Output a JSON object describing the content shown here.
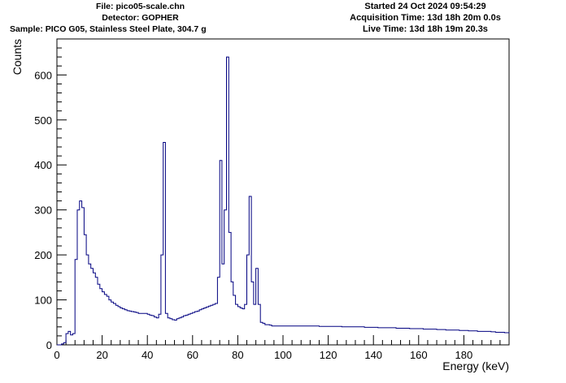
{
  "header": {
    "file": "File: pico05-scale.chn",
    "detector": "Detector: GOPHER",
    "sample": "Sample: PICO G05, Stainless Steel Plate, 304.7 g",
    "started": "Started 24 Oct 2024 09:54:29",
    "acquisition": "Acquisition Time: 13d 18h 20m 0.0s",
    "live": "Live Time: 13d 18h 19m 20.3s"
  },
  "colors": {
    "series": "#000080",
    "axis": "#000000",
    "background": "#ffffff"
  },
  "chart_data": {
    "type": "line",
    "style": "histogram-step",
    "xlabel": "Energy (keV)",
    "ylabel": "Counts",
    "xlim": [
      0,
      200
    ],
    "ylim": [
      0,
      680
    ],
    "xticks": [
      "0",
      "20",
      "40",
      "60",
      "80",
      "100",
      "120",
      "140",
      "160",
      "180"
    ],
    "yticks": [
      "0",
      "100",
      "200",
      "300",
      "400",
      "500",
      "600"
    ],
    "grid": false,
    "legend": "none",
    "x": [
      0,
      1,
      2,
      3,
      4,
      5,
      6,
      7,
      8,
      9,
      10,
      11,
      12,
      13,
      14,
      15,
      16,
      17,
      18,
      19,
      20,
      21,
      22,
      23,
      24,
      25,
      26,
      27,
      28,
      29,
      30,
      31,
      32,
      33,
      34,
      35,
      36,
      37,
      38,
      39,
      40,
      41,
      42,
      43,
      44,
      45,
      46,
      47,
      48,
      49,
      50,
      51,
      52,
      53,
      54,
      55,
      56,
      57,
      58,
      59,
      60,
      61,
      62,
      63,
      64,
      65,
      66,
      67,
      68,
      69,
      70,
      71,
      72,
      73,
      74,
      75,
      76,
      77,
      78,
      79,
      80,
      81,
      82,
      83,
      84,
      85,
      86,
      87,
      88,
      89,
      90,
      91,
      92,
      93,
      94,
      95,
      96,
      97,
      98,
      99,
      100,
      102,
      104,
      106,
      108,
      110,
      112,
      114,
      116,
      118,
      120,
      122,
      124,
      126,
      128,
      130,
      132,
      134,
      136,
      138,
      140,
      142,
      144,
      146,
      148,
      150,
      152,
      154,
      156,
      158,
      160,
      162,
      164,
      166,
      168,
      170,
      172,
      174,
      176,
      178,
      180,
      182,
      184,
      186,
      188,
      190,
      192,
      194,
      196,
      198,
      200
    ],
    "values": [
      0,
      0,
      2,
      5,
      25,
      30,
      22,
      25,
      190,
      300,
      320,
      305,
      245,
      200,
      180,
      170,
      160,
      150,
      135,
      125,
      118,
      112,
      108,
      100,
      95,
      92,
      88,
      85,
      82,
      80,
      78,
      76,
      75,
      74,
      73,
      72,
      70,
      70,
      70,
      70,
      68,
      66,
      65,
      62,
      60,
      68,
      200,
      450,
      70,
      60,
      58,
      56,
      55,
      58,
      60,
      62,
      65,
      66,
      68,
      70,
      72,
      74,
      75,
      78,
      80,
      82,
      84,
      86,
      88,
      90,
      92,
      150,
      410,
      180,
      300,
      640,
      250,
      140,
      110,
      90,
      85,
      82,
      80,
      90,
      200,
      330,
      140,
      90,
      170,
      90,
      50,
      48,
      45,
      45,
      44,
      42,
      42,
      42,
      42,
      42,
      42,
      42,
      42,
      42,
      42,
      42,
      42,
      42,
      41,
      41,
      41,
      41,
      41,
      40,
      40,
      40,
      40,
      40,
      39,
      39,
      39,
      38,
      38,
      38,
      38,
      37,
      37,
      37,
      36,
      36,
      36,
      35,
      35,
      35,
      34,
      34,
      33,
      33,
      33,
      32,
      32,
      31,
      31,
      30,
      30,
      30,
      29,
      28,
      28,
      27,
      26
    ]
  }
}
